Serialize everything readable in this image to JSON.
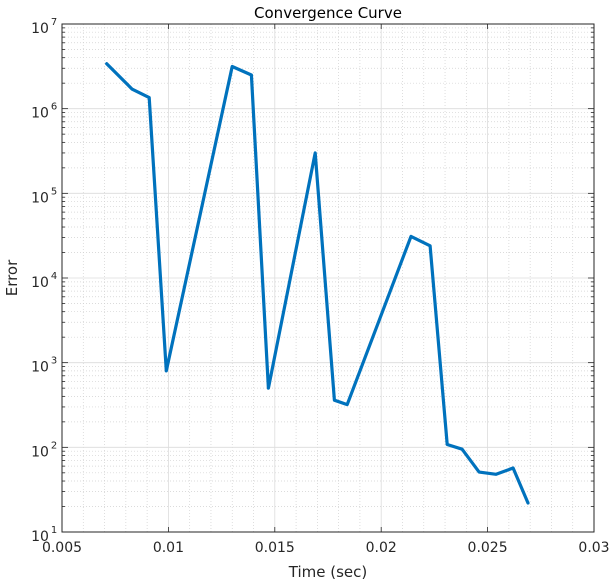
{
  "chart_data": {
    "type": "line",
    "title": "Convergence Curve",
    "xlabel": "Time (sec)",
    "ylabel": "Error",
    "xlim": [
      0.005,
      0.03
    ],
    "ylim": [
      10,
      10000000
    ],
    "yscale": "log",
    "grid": true,
    "minor_grid": true,
    "x_ticks": [
      0.005,
      0.01,
      0.015,
      0.02,
      0.025,
      0.03
    ],
    "x_tick_labels": [
      "0.005",
      "0.01",
      "0.015",
      "0.02",
      "0.025",
      "0.03"
    ],
    "y_ticks": [
      10,
      100,
      1000,
      10000,
      100000,
      1000000,
      10000000
    ],
    "y_tick_labels": [
      {
        "base": "10",
        "exp": "1"
      },
      {
        "base": "10",
        "exp": "2"
      },
      {
        "base": "10",
        "exp": "3"
      },
      {
        "base": "10",
        "exp": "4"
      },
      {
        "base": "10",
        "exp": "5"
      },
      {
        "base": "10",
        "exp": "6"
      },
      {
        "base": "10",
        "exp": "7"
      }
    ],
    "series": [
      {
        "color": "#0072BD",
        "x": [
          0.0071,
          0.0083,
          0.0091,
          0.0099,
          0.013,
          0.0139,
          0.0147,
          0.0169,
          0.0178,
          0.0184,
          0.0214,
          0.0223,
          0.0231,
          0.0238,
          0.0246,
          0.0254,
          0.0262,
          0.0269
        ],
        "y": [
          3400000,
          1700000,
          1350000,
          800,
          3150000,
          2500000,
          500,
          300000,
          360,
          320,
          31000,
          24000,
          108,
          95,
          51,
          48,
          57,
          22
        ]
      }
    ]
  }
}
